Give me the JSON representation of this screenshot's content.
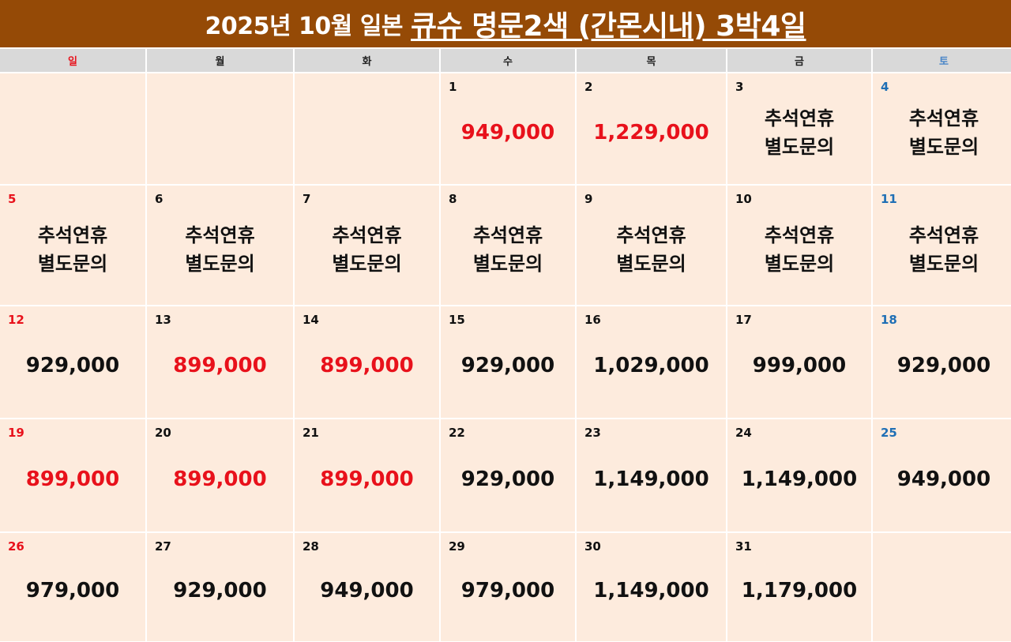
{
  "title": {
    "prefix": "2025년 10월 일본",
    "main": "큐슈 명문2색 (간몬시내) 3박4일"
  },
  "colors": {
    "red": "#e8111b",
    "blue": "#1f6fb5",
    "black": "#111111"
  },
  "weekdays": [
    {
      "label": "일",
      "color": "#e8111b"
    },
    {
      "label": "월",
      "color": "#222222"
    },
    {
      "label": "화",
      "color": "#222222"
    },
    {
      "label": "수",
      "color": "#222222"
    },
    {
      "label": "목",
      "color": "#222222"
    },
    {
      "label": "금",
      "color": "#222222"
    },
    {
      "label": "토",
      "color": "#4a86c8"
    }
  ],
  "weeks": [
    [
      {
        "day": "",
        "text": ""
      },
      {
        "day": "",
        "text": ""
      },
      {
        "day": "",
        "text": ""
      },
      {
        "day": "1",
        "text": "949,000",
        "red": true
      },
      {
        "day": "2",
        "text": "1,229,000",
        "red": true
      },
      {
        "day": "3",
        "text": "추석연휴\n별도문의"
      },
      {
        "day": "4",
        "text": "추석연휴\n별도문의"
      }
    ],
    [
      {
        "day": "5",
        "text": "추석연휴\n별도문의"
      },
      {
        "day": "6",
        "text": "추석연휴\n별도문의"
      },
      {
        "day": "7",
        "text": "추석연휴\n별도문의"
      },
      {
        "day": "8",
        "text": "추석연휴\n별도문의"
      },
      {
        "day": "9",
        "text": "추석연휴\n별도문의"
      },
      {
        "day": "10",
        "text": "추석연휴\n별도문의"
      },
      {
        "day": "11",
        "text": "추석연휴\n별도문의"
      }
    ],
    [
      {
        "day": "12",
        "text": "929,000"
      },
      {
        "day": "13",
        "text": "899,000",
        "red": true
      },
      {
        "day": "14",
        "text": "899,000",
        "red": true
      },
      {
        "day": "15",
        "text": "929,000"
      },
      {
        "day": "16",
        "text": "1,029,000"
      },
      {
        "day": "17",
        "text": "999,000"
      },
      {
        "day": "18",
        "text": "929,000"
      }
    ],
    [
      {
        "day": "19",
        "text": "899,000",
        "red": true
      },
      {
        "day": "20",
        "text": "899,000",
        "red": true
      },
      {
        "day": "21",
        "text": "899,000",
        "red": true
      },
      {
        "day": "22",
        "text": "929,000"
      },
      {
        "day": "23",
        "text": "1,149,000"
      },
      {
        "day": "24",
        "text": "1,149,000"
      },
      {
        "day": "25",
        "text": "949,000"
      }
    ],
    [
      {
        "day": "26",
        "text": "979,000"
      },
      {
        "day": "27",
        "text": "929,000"
      },
      {
        "day": "28",
        "text": "949,000"
      },
      {
        "day": "29",
        "text": "979,000"
      },
      {
        "day": "30",
        "text": "1,149,000"
      },
      {
        "day": "31",
        "text": "1,179,000"
      },
      {
        "day": "",
        "text": ""
      }
    ]
  ]
}
